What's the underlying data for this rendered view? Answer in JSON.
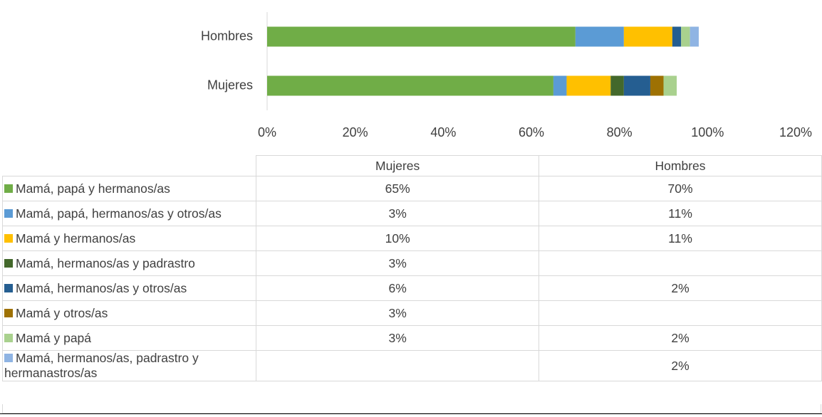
{
  "chart_data": {
    "type": "stacked-bar-horizontal",
    "categories": [
      "Mujeres",
      "Hombres"
    ],
    "series": [
      {
        "name": "Mamá, papá y hermanos/as",
        "color": "#70ad47",
        "values": [
          65,
          70
        ],
        "value_labels": [
          "65%",
          "70%"
        ]
      },
      {
        "name": "Mamá, papá, hermanos/as y otros/as",
        "color": "#5b9bd5",
        "values": [
          3,
          11
        ],
        "value_labels": [
          "3%",
          "11%"
        ]
      },
      {
        "name": "Mamá y hermanos/as",
        "color": "#ffc000",
        "values": [
          10,
          11
        ],
        "value_labels": [
          "10%",
          "11%"
        ]
      },
      {
        "name": "Mamá, hermanos/as y padrastro",
        "color": "#43682b",
        "values": [
          3,
          null
        ],
        "value_labels": [
          "3%",
          null
        ]
      },
      {
        "name": "Mamá, hermanos/as y otros/as",
        "color": "#255e91",
        "values": [
          6,
          2
        ],
        "value_labels": [
          "6%",
          "2%"
        ]
      },
      {
        "name": "Mamá y otros/as",
        "color": "#9e7103",
        "values": [
          3,
          null
        ],
        "value_labels": [
          "3%",
          null
        ]
      },
      {
        "name": "Mamá y papá",
        "color": "#a9d18e",
        "values": [
          3,
          2
        ],
        "value_labels": [
          "3%",
          "2%"
        ]
      },
      {
        "name": "Mamá, hermanos/as, padrastro y hermanastros/as",
        "color": "#8fb4e3",
        "values": [
          null,
          2
        ],
        "value_labels": [
          null,
          "2%"
        ]
      }
    ],
    "xlim": [
      0,
      120
    ],
    "xticks": [
      {
        "value": 0,
        "label": "0%"
      },
      {
        "value": 20,
        "label": "20%"
      },
      {
        "value": 40,
        "label": "40%"
      },
      {
        "value": 60,
        "label": "60%"
      },
      {
        "value": 80,
        "label": "80%"
      },
      {
        "value": 100,
        "label": "100%"
      },
      {
        "value": 120,
        "label": "120%"
      }
    ],
    "data_table": true
  }
}
